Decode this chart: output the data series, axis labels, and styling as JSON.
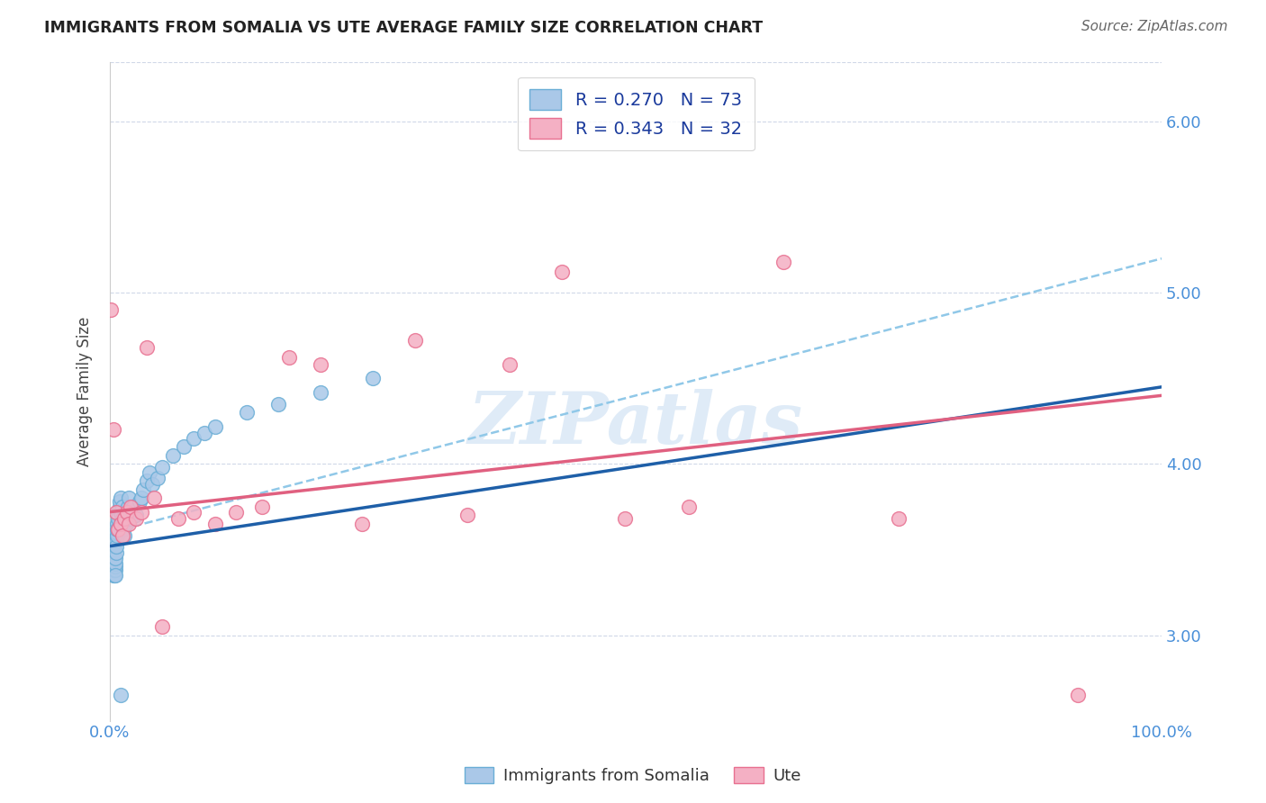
{
  "title": "IMMIGRANTS FROM SOMALIA VS UTE AVERAGE FAMILY SIZE CORRELATION CHART",
  "source": "Source: ZipAtlas.com",
  "ylabel": "Average Family Size",
  "yticks": [
    3.0,
    4.0,
    5.0,
    6.0
  ],
  "xlim": [
    0.0,
    1.0
  ],
  "ylim": [
    2.5,
    6.35
  ],
  "somalia_color": "#aac8e8",
  "somalia_edge": "#6aaed6",
  "ute_color": "#f4b0c4",
  "ute_edge": "#e87090",
  "somalia_line_color": "#1e5fa8",
  "ute_line_color": "#e06080",
  "dashed_line_color": "#90c8e8",
  "somalia_R": 0.27,
  "somalia_N": 73,
  "ute_R": 0.343,
  "ute_N": 32,
  "watermark": "ZIPatlas",
  "somalia_x": [
    0.001,
    0.001,
    0.001,
    0.001,
    0.001,
    0.002,
    0.002,
    0.002,
    0.002,
    0.002,
    0.002,
    0.003,
    0.003,
    0.003,
    0.003,
    0.003,
    0.003,
    0.004,
    0.004,
    0.004,
    0.004,
    0.004,
    0.005,
    0.005,
    0.005,
    0.005,
    0.005,
    0.006,
    0.006,
    0.006,
    0.006,
    0.007,
    0.007,
    0.007,
    0.008,
    0.008,
    0.008,
    0.009,
    0.009,
    0.01,
    0.01,
    0.011,
    0.011,
    0.012,
    0.012,
    0.013,
    0.014,
    0.015,
    0.016,
    0.017,
    0.018,
    0.019,
    0.02,
    0.022,
    0.025,
    0.028,
    0.03,
    0.032,
    0.035,
    0.038,
    0.04,
    0.045,
    0.05,
    0.06,
    0.07,
    0.08,
    0.09,
    0.1,
    0.13,
    0.16,
    0.2,
    0.25,
    0.01
  ],
  "somalia_y": [
    3.45,
    3.5,
    3.52,
    3.42,
    3.55,
    3.38,
    3.42,
    3.48,
    3.45,
    3.4,
    3.52,
    3.35,
    3.38,
    3.4,
    3.45,
    3.42,
    3.48,
    3.35,
    3.38,
    3.4,
    3.42,
    3.45,
    3.38,
    3.4,
    3.42,
    3.35,
    3.45,
    3.55,
    3.6,
    3.48,
    3.52,
    3.65,
    3.58,
    3.62,
    3.7,
    3.72,
    3.68,
    3.75,
    3.78,
    3.72,
    3.8,
    3.65,
    3.7,
    3.75,
    3.68,
    3.62,
    3.58,
    3.65,
    3.7,
    3.75,
    3.8,
    3.72,
    3.68,
    3.75,
    3.7,
    3.78,
    3.8,
    3.85,
    3.9,
    3.95,
    3.88,
    3.92,
    3.98,
    4.05,
    4.1,
    4.15,
    4.18,
    4.22,
    4.3,
    4.35,
    4.42,
    4.5,
    2.65
  ],
  "ute_x": [
    0.001,
    0.003,
    0.006,
    0.008,
    0.01,
    0.012,
    0.014,
    0.016,
    0.018,
    0.02,
    0.025,
    0.03,
    0.035,
    0.042,
    0.05,
    0.065,
    0.08,
    0.1,
    0.12,
    0.145,
    0.17,
    0.2,
    0.24,
    0.29,
    0.34,
    0.38,
    0.43,
    0.49,
    0.55,
    0.64,
    0.75,
    0.92
  ],
  "ute_y": [
    4.9,
    4.2,
    3.72,
    3.62,
    3.65,
    3.58,
    3.68,
    3.72,
    3.65,
    3.75,
    3.68,
    3.72,
    4.68,
    3.8,
    3.05,
    3.68,
    3.72,
    3.65,
    3.72,
    3.75,
    4.62,
    4.58,
    3.65,
    4.72,
    3.7,
    4.58,
    5.12,
    3.68,
    3.75,
    5.18,
    3.68,
    2.65
  ],
  "somalia_line_x": [
    0.0,
    1.0
  ],
  "somalia_line_y": [
    3.52,
    4.45
  ],
  "ute_line_x": [
    0.0,
    1.0
  ],
  "ute_line_y": [
    3.72,
    4.4
  ],
  "dashed_line_x": [
    0.0,
    1.0
  ],
  "dashed_line_y": [
    3.6,
    5.2
  ]
}
